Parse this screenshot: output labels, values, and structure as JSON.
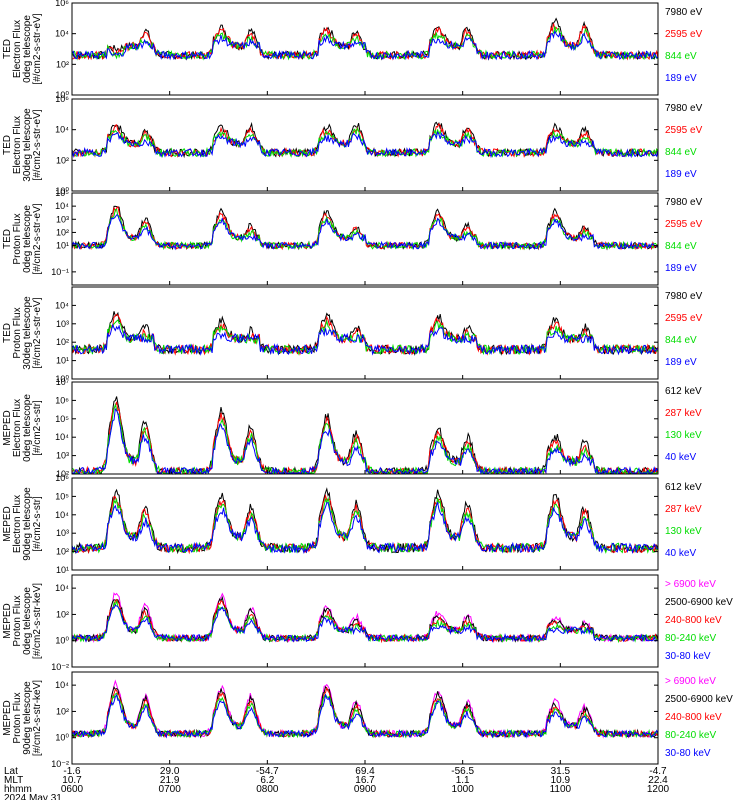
{
  "colors": {
    "blue": "#0000ff",
    "red": "#ff0000",
    "green": "#00dd00",
    "black": "#000000",
    "magenta": "#ff00ff",
    "axis": "#000000"
  },
  "chart_data": [
    {
      "type": "line",
      "ylabel": [
        "TED",
        "Electron Flux",
        "0deg telescope",
        "[#/cm2-s-str-eV]"
      ],
      "ylim": [
        1.0,
        1000000.0
      ],
      "yticks": [
        {
          "v": 0,
          "t": "10⁰"
        },
        {
          "v": 2,
          "t": "10²"
        },
        {
          "v": 4,
          "t": "10⁴"
        },
        {
          "v": 6,
          "t": "10⁶"
        }
      ],
      "series": [
        {
          "name": "7980 eV",
          "color": "black"
        },
        {
          "name": "2595 eV",
          "color": "red"
        },
        {
          "name": "844 eV",
          "color": "green"
        },
        {
          "name": "189 eV",
          "color": "blue"
        }
      ],
      "peaks": [
        [
          2.4,
          4.2
        ],
        [
          3.8,
          4.2
        ],
        [
          3.8,
          4.2
        ],
        [
          3.8,
          4.4
        ],
        [
          4.2,
          4.6
        ]
      ],
      "base": 2.6
    },
    {
      "type": "line",
      "ylabel": [
        "TED",
        "Electron Flux",
        "30deg telescope",
        "[#/cm2-s-str-eV]"
      ],
      "ylim": [
        1.0,
        1000000.0
      ],
      "yticks": [
        {
          "v": 0,
          "t": "10⁰"
        },
        {
          "v": 2,
          "t": "10²"
        },
        {
          "v": 4,
          "t": "10⁴"
        },
        {
          "v": 6,
          "t": "10⁶"
        }
      ],
      "series": [
        {
          "name": "7980 eV",
          "color": "black"
        },
        {
          "name": "2595 eV",
          "color": "red"
        },
        {
          "name": "844 eV",
          "color": "green"
        },
        {
          "name": "189 eV",
          "color": "blue"
        }
      ],
      "peaks": [
        [
          3.8,
          4.0
        ],
        [
          3.6,
          4.2
        ],
        [
          3.6,
          4.4
        ],
        [
          3.8,
          4.2
        ],
        [
          3.6,
          4.0
        ]
      ],
      "base": 2.5
    },
    {
      "type": "line",
      "ylabel": [
        "TED",
        "Proton Flux",
        "0deg telescope",
        "[#/cm2-s-str-eV]"
      ],
      "ylim": [
        0.01,
        100000.0
      ],
      "yticks": [
        {
          "v": -1,
          "t": "10⁻¹"
        },
        {
          "v": 1,
          "t": "10¹"
        },
        {
          "v": 2,
          "t": "10²"
        },
        {
          "v": 3,
          "t": "10³"
        },
        {
          "v": 4,
          "t": "10⁴"
        },
        {
          "v": 5,
          "t": "10⁵"
        }
      ],
      "series": [
        {
          "name": "7980 eV",
          "color": "black"
        },
        {
          "name": "2595 eV",
          "color": "red"
        },
        {
          "name": "844 eV",
          "color": "green"
        },
        {
          "name": "189 eV",
          "color": "blue"
        }
      ],
      "peaks": [
        [
          3.5,
          3.0
        ],
        [
          3.0,
          2.5
        ],
        [
          3.0,
          2.5
        ],
        [
          3.0,
          2.5
        ],
        [
          3.0,
          2.5
        ]
      ],
      "base": 1.0
    },
    {
      "type": "line",
      "ylabel": [
        "TED",
        "Proton Flux",
        "30deg telescope",
        "[#/cm2-s-str-eV]"
      ],
      "ylim": [
        1.0,
        100000.0
      ],
      "yticks": [
        {
          "v": 0,
          "t": "10⁰"
        },
        {
          "v": 1,
          "t": "10¹"
        },
        {
          "v": 2,
          "t": "10²"
        },
        {
          "v": 3,
          "t": "10³"
        },
        {
          "v": 4,
          "t": "10⁴"
        }
      ],
      "series": [
        {
          "name": "7980 eV",
          "color": "black"
        },
        {
          "name": "2595 eV",
          "color": "red"
        },
        {
          "name": "844 eV",
          "color": "green"
        },
        {
          "name": "189 eV",
          "color": "blue"
        }
      ],
      "peaks": [
        [
          3.0,
          2.8
        ],
        [
          2.6,
          2.6
        ],
        [
          2.8,
          2.8
        ],
        [
          2.8,
          2.8
        ],
        [
          2.6,
          2.8
        ]
      ],
      "base": 1.6
    },
    {
      "type": "line",
      "ylabel": [
        "MEPED",
        "Electron Flux",
        "0deg telescope",
        "[#/cm2-s-str]"
      ],
      "ylim": [
        100.0,
        10000000.0
      ],
      "yticks": [
        {
          "v": 2,
          "t": "10²"
        },
        {
          "v": 3,
          "t": "10³"
        },
        {
          "v": 4,
          "t": "10⁴"
        },
        {
          "v": 5,
          "t": "10⁵"
        },
        {
          "v": 6,
          "t": "10⁶"
        },
        {
          "v": 7,
          "t": "10⁷"
        }
      ],
      "series": [
        {
          "name": "612 keV",
          "color": "black"
        },
        {
          "name": "287 keV",
          "color": "red"
        },
        {
          "name": "130 keV",
          "color": "green"
        },
        {
          "name": "40 keV",
          "color": "blue"
        }
      ],
      "peaks": [
        [
          5.5,
          4.8
        ],
        [
          4.8,
          4.5
        ],
        [
          4.5,
          4.2
        ],
        [
          3.8,
          4.0
        ],
        [
          3.4,
          3.8
        ]
      ],
      "base": 2.1
    },
    {
      "type": "line",
      "ylabel": [
        "MEPED",
        "Electron Flux",
        "90deg telescope",
        "[#/cm2-s-str]"
      ],
      "ylim": [
        10.0,
        1000000.0
      ],
      "yticks": [
        {
          "v": 1,
          "t": "10¹"
        },
        {
          "v": 2,
          "t": "10²"
        },
        {
          "v": 3,
          "t": "10³"
        },
        {
          "v": 4,
          "t": "10⁴"
        },
        {
          "v": 5,
          "t": "10⁵"
        },
        {
          "v": 6,
          "t": "10⁶"
        }
      ],
      "series": [
        {
          "name": "612 keV",
          "color": "black"
        },
        {
          "name": "287 keV",
          "color": "red"
        },
        {
          "name": "130 keV",
          "color": "green"
        },
        {
          "name": "40 keV",
          "color": "blue"
        }
      ],
      "peaks": [
        [
          4.6,
          4.4
        ],
        [
          4.4,
          4.4
        ],
        [
          4.6,
          4.6
        ],
        [
          4.6,
          4.6
        ],
        [
          4.4,
          4.4
        ]
      ],
      "base": 2.2
    },
    {
      "type": "line",
      "ylabel": [
        "MEPED",
        "Proton Flux",
        "0deg telescope",
        "[#/cm2-s-str-keV]"
      ],
      "ylim": [
        0.01,
        100000.0
      ],
      "yticks": [
        {
          "v": -2,
          "t": "10⁻²"
        },
        {
          "v": 0,
          "t": "10⁰"
        },
        {
          "v": 2,
          "t": "10²"
        },
        {
          "v": 4,
          "t": "10⁴"
        }
      ],
      "series": [
        {
          "name": "> 6900 keV",
          "color": "magenta"
        },
        {
          "name": "2500-6900 keV",
          "color": "black"
        },
        {
          "name": "240-800 keV",
          "color": "red"
        },
        {
          "name": "80-240 keV",
          "color": "green"
        },
        {
          "name": "30-80 keV",
          "color": "blue"
        }
      ],
      "peaks": [
        [
          3.0,
          2.6
        ],
        [
          2.8,
          2.5
        ],
        [
          2.0,
          1.8
        ],
        [
          1.5,
          2.0
        ],
        [
          1.2,
          1.5
        ]
      ],
      "base": 0.2
    },
    {
      "type": "line",
      "ylabel": [
        "MEPED",
        "Proton Flux",
        "90deg telescope",
        "[#/cm2-s-str-keV]"
      ],
      "ylim": [
        0.01,
        100000.0
      ],
      "yticks": [
        {
          "v": -2,
          "t": "10⁻²"
        },
        {
          "v": 0,
          "t": "10⁰"
        },
        {
          "v": 2,
          "t": "10²"
        },
        {
          "v": 4,
          "t": "10⁴"
        }
      ],
      "series": [
        {
          "name": "> 6900 keV",
          "color": "magenta"
        },
        {
          "name": "2500-6900 keV",
          "color": "black"
        },
        {
          "name": "240-800 keV",
          "color": "red"
        },
        {
          "name": "80-240 keV",
          "color": "green"
        },
        {
          "name": "30-80 keV",
          "color": "blue"
        }
      ],
      "peaks": [
        [
          3.5,
          3.2
        ],
        [
          3.2,
          3.2
        ],
        [
          3.5,
          2.8
        ],
        [
          3.0,
          2.8
        ],
        [
          2.2,
          2.4
        ]
      ],
      "base": 0.3
    }
  ],
  "x_axis": {
    "row_labels": [
      "Lat",
      "MLT",
      "hhmm",
      "2024 May 31"
    ],
    "ticks": [
      {
        "lat": "-1.6",
        "mlt": "10.7",
        "hhmm": "0600"
      },
      {
        "lat": "29.0",
        "mlt": "21.9",
        "hhmm": "0700"
      },
      {
        "lat": "-54.7",
        "mlt": "6.2",
        "hhmm": "0800"
      },
      {
        "lat": "69.4",
        "mlt": "16.7",
        "hhmm": "0900"
      },
      {
        "lat": "-56.5",
        "mlt": "1.1",
        "hhmm": "1000"
      },
      {
        "lat": "31.5",
        "mlt": "10.9",
        "hhmm": "1100"
      },
      {
        "lat": "-4.7",
        "mlt": "22.4",
        "hhmm": "1200"
      }
    ]
  }
}
